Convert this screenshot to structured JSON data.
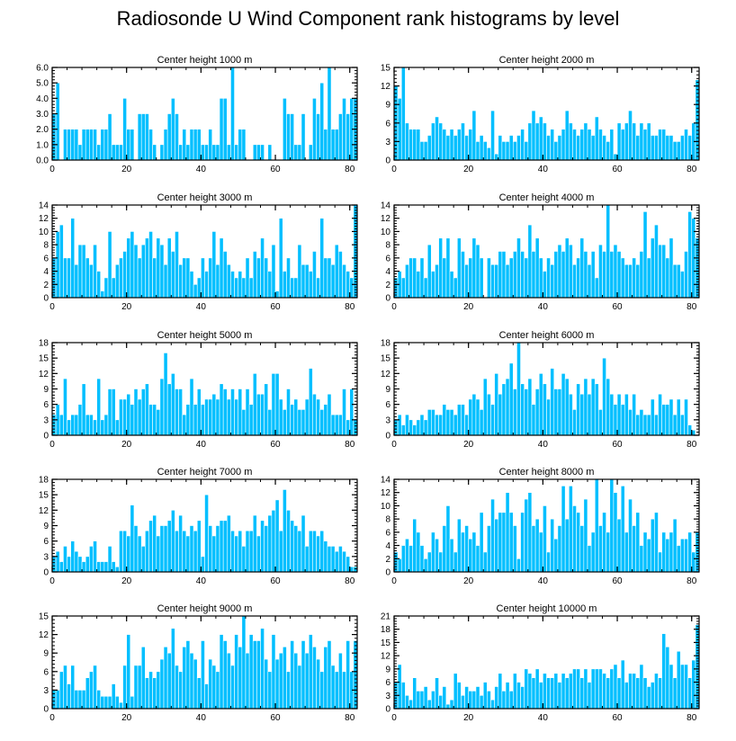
{
  "title": "Radiosonde U Wind Component rank histograms by level",
  "bar_color": "#00bfff",
  "bar_edge_color": "#ffffff",
  "chart_data": [
    {
      "type": "bar",
      "title": "Center height 1000 m",
      "xlim": [
        0,
        82
      ],
      "ylim": [
        0,
        6
      ],
      "xticks": [
        0,
        20,
        40,
        60,
        80
      ],
      "yticks": [
        0,
        1,
        2,
        3,
        4,
        5,
        6
      ],
      "ytick_labels": [
        "0.0",
        "1.0",
        "2.0",
        "3.0",
        "4.0",
        "5.0",
        "6.0"
      ],
      "values": [
        3,
        5,
        0,
        2,
        2,
        2,
        2,
        1,
        2,
        2,
        2,
        2,
        1,
        2,
        2,
        3,
        1,
        1,
        1,
        4,
        2,
        2,
        0,
        3,
        3,
        3,
        2,
        1,
        0,
        1,
        2,
        3,
        4,
        3,
        1,
        2,
        1,
        2,
        2,
        2,
        1,
        1,
        2,
        1,
        1,
        4,
        4,
        1,
        6,
        1,
        2,
        2,
        0,
        0,
        1,
        1,
        1,
        0,
        1,
        0,
        0,
        0,
        4,
        3,
        3,
        1,
        1,
        3,
        0,
        1,
        4,
        3,
        5,
        2,
        6,
        2,
        2,
        3,
        4,
        3,
        4,
        4
      ]
    },
    {
      "type": "bar",
      "title": "Center height 2000 m",
      "xlim": [
        0,
        82
      ],
      "ylim": [
        0,
        15
      ],
      "xticks": [
        0,
        20,
        40,
        60,
        80
      ],
      "yticks": [
        0,
        3,
        6,
        9,
        12,
        15
      ],
      "ytick_labels": [
        "0",
        "3",
        "6",
        "9",
        "12",
        "15"
      ],
      "values": [
        12,
        10,
        15,
        6,
        5,
        5,
        5,
        3,
        3,
        4,
        6,
        7,
        6,
        5,
        4,
        5,
        4,
        5,
        6,
        4,
        5,
        8,
        3,
        4,
        3,
        2,
        8,
        1,
        4,
        3,
        3,
        4,
        3,
        4,
        5,
        3,
        6,
        8,
        6,
        7,
        6,
        4,
        5,
        3,
        4,
        5,
        8,
        6,
        5,
        4,
        5,
        6,
        5,
        4,
        7,
        5,
        4,
        3,
        5,
        1,
        6,
        5,
        6,
        8,
        6,
        4,
        6,
        5,
        6,
        4,
        4,
        5,
        5,
        4,
        4,
        3,
        3,
        4,
        5,
        4,
        6,
        13
      ]
    },
    {
      "type": "bar",
      "title": "Center height 3000 m",
      "xlim": [
        0,
        82
      ],
      "ylim": [
        0,
        14
      ],
      "xticks": [
        0,
        20,
        40,
        60,
        80
      ],
      "yticks": [
        0,
        2,
        4,
        6,
        8,
        10,
        12,
        14
      ],
      "ytick_labels": [
        "0",
        "2",
        "4",
        "6",
        "8",
        "10",
        "12",
        "14"
      ],
      "values": [
        6,
        10,
        11,
        6,
        6,
        12,
        5,
        8,
        8,
        6,
        5,
        8,
        4,
        1,
        3,
        10,
        3,
        5,
        6,
        7,
        9,
        10,
        8,
        6,
        8,
        9,
        10,
        6,
        9,
        8,
        5,
        9,
        7,
        10,
        5,
        6,
        6,
        4,
        2,
        3,
        6,
        4,
        6,
        10,
        5,
        9,
        7,
        5,
        4,
        3,
        4,
        3,
        6,
        3,
        7,
        6,
        9,
        6,
        4,
        8,
        1,
        12,
        4,
        6,
        3,
        3,
        8,
        5,
        5,
        4,
        7,
        3,
        12,
        6,
        6,
        5,
        8,
        7,
        5,
        4,
        3,
        14
      ]
    },
    {
      "type": "bar",
      "title": "Center height 4000 m",
      "xlim": [
        0,
        82
      ],
      "ylim": [
        0,
        14
      ],
      "xticks": [
        0,
        20,
        40,
        60,
        80
      ],
      "yticks": [
        0,
        2,
        4,
        6,
        8,
        10,
        12,
        14
      ],
      "ytick_labels": [
        "0",
        "2",
        "4",
        "6",
        "8",
        "10",
        "12",
        "14"
      ],
      "values": [
        3,
        4,
        3,
        5,
        6,
        6,
        4,
        6,
        3,
        8,
        4,
        5,
        9,
        6,
        9,
        4,
        3,
        9,
        7,
        5,
        6,
        9,
        8,
        6,
        0,
        6,
        5,
        5,
        7,
        7,
        5,
        6,
        7,
        9,
        7,
        6,
        11,
        7,
        9,
        6,
        4,
        6,
        5,
        7,
        8,
        7,
        9,
        8,
        5,
        6,
        9,
        7,
        5,
        7,
        3,
        8,
        7,
        14,
        7,
        8,
        7,
        6,
        5,
        5,
        6,
        5,
        7,
        13,
        6,
        9,
        11,
        8,
        8,
        6,
        9,
        5,
        5,
        4,
        7,
        13,
        12,
        9
      ]
    },
    {
      "type": "bar",
      "title": "Center height 5000 m",
      "xlim": [
        0,
        82
      ],
      "ylim": [
        0,
        18
      ],
      "xticks": [
        0,
        20,
        40,
        60,
        80
      ],
      "yticks": [
        0,
        3,
        6,
        9,
        12,
        15,
        18
      ],
      "ytick_labels": [
        "0",
        "3",
        "6",
        "9",
        "12",
        "15",
        "18"
      ],
      "values": [
        4,
        6,
        4,
        11,
        3,
        4,
        4,
        6,
        10,
        4,
        4,
        3,
        11,
        3,
        4,
        9,
        9,
        3,
        7,
        7,
        8,
        6,
        9,
        7,
        9,
        10,
        6,
        6,
        5,
        11,
        16,
        10,
        12,
        9,
        9,
        4,
        6,
        11,
        6,
        9,
        6,
        7,
        7,
        8,
        7,
        10,
        9,
        7,
        9,
        7,
        9,
        5,
        9,
        6,
        12,
        8,
        8,
        10,
        5,
        12,
        12,
        7,
        5,
        9,
        6,
        7,
        5,
        5,
        7,
        13,
        8,
        7,
        5,
        6,
        8,
        4,
        4,
        4,
        9,
        3,
        9,
        3
      ]
    },
    {
      "type": "bar",
      "title": "Center height 6000 m",
      "xlim": [
        0,
        82
      ],
      "ylim": [
        0,
        18
      ],
      "xticks": [
        0,
        20,
        40,
        60,
        80
      ],
      "yticks": [
        0,
        3,
        6,
        9,
        12,
        15,
        18
      ],
      "ytick_labels": [
        "0",
        "3",
        "6",
        "9",
        "12",
        "15",
        "18"
      ],
      "values": [
        3,
        4,
        2,
        4,
        3,
        2,
        3,
        4,
        3,
        5,
        5,
        4,
        4,
        6,
        5,
        5,
        4,
        6,
        6,
        4,
        7,
        8,
        7,
        5,
        11,
        8,
        6,
        12,
        8,
        10,
        11,
        14,
        9,
        18,
        10,
        9,
        11,
        6,
        9,
        12,
        10,
        7,
        13,
        9,
        9,
        12,
        11,
        8,
        5,
        10,
        8,
        11,
        8,
        11,
        10,
        5,
        15,
        11,
        8,
        6,
        8,
        6,
        8,
        5,
        8,
        4,
        5,
        4,
        4,
        7,
        4,
        8,
        6,
        6,
        7,
        4,
        7,
        4,
        7,
        2,
        1,
        0
      ]
    },
    {
      "type": "bar",
      "title": "Center height 7000 m",
      "xlim": [
        0,
        82
      ],
      "ylim": [
        0,
        18
      ],
      "xticks": [
        0,
        20,
        40,
        60,
        80
      ],
      "yticks": [
        0,
        3,
        6,
        9,
        12,
        15,
        18
      ],
      "ytick_labels": [
        "0",
        "3",
        "6",
        "9",
        "12",
        "15",
        "18"
      ],
      "values": [
        3,
        4,
        2,
        5,
        3,
        6,
        4,
        3,
        2,
        3,
        5,
        6,
        2,
        2,
        2,
        5,
        2,
        1,
        8,
        8,
        7,
        13,
        9,
        7,
        5,
        8,
        10,
        11,
        7,
        9,
        9,
        10,
        12,
        8,
        11,
        8,
        7,
        9,
        8,
        10,
        3,
        15,
        9,
        7,
        9,
        10,
        10,
        11,
        8,
        7,
        8,
        5,
        8,
        8,
        11,
        7,
        10,
        9,
        11,
        12,
        14,
        8,
        16,
        12,
        10,
        9,
        8,
        11,
        5,
        8,
        8,
        7,
        8,
        6,
        5,
        5,
        4,
        5,
        4,
        3,
        1,
        1
      ]
    },
    {
      "type": "bar",
      "title": "Center height 8000 m",
      "xlim": [
        0,
        82
      ],
      "ylim": [
        0,
        14
      ],
      "xticks": [
        0,
        20,
        40,
        60,
        80
      ],
      "yticks": [
        0,
        2,
        4,
        6,
        8,
        10,
        12,
        14
      ],
      "ytick_labels": [
        "0",
        "2",
        "4",
        "6",
        "8",
        "10",
        "12",
        "14"
      ],
      "values": [
        3,
        2,
        4,
        5,
        4,
        8,
        6,
        4,
        2,
        3,
        6,
        5,
        3,
        7,
        10,
        5,
        3,
        8,
        6,
        7,
        5,
        6,
        4,
        9,
        3,
        7,
        11,
        8,
        9,
        9,
        12,
        9,
        7,
        2,
        9,
        11,
        12,
        7,
        8,
        6,
        10,
        3,
        8,
        5,
        7,
        13,
        8,
        13,
        10,
        9,
        7,
        11,
        4,
        6,
        14,
        7,
        9,
        6,
        14,
        12,
        8,
        13,
        6,
        11,
        7,
        9,
        4,
        6,
        5,
        8,
        9,
        3,
        6,
        5,
        6,
        8,
        4,
        5,
        5,
        6,
        3,
        6
      ]
    },
    {
      "type": "bar",
      "title": "Center height 9000 m",
      "xlim": [
        0,
        82
      ],
      "ylim": [
        0,
        15
      ],
      "xticks": [
        0,
        20,
        40,
        60,
        80
      ],
      "yticks": [
        0,
        3,
        6,
        9,
        12,
        15
      ],
      "ytick_labels": [
        "0",
        "3",
        "6",
        "9",
        "12",
        "15"
      ],
      "values": [
        3,
        3,
        6,
        7,
        4,
        7,
        3,
        3,
        3,
        5,
        6,
        7,
        3,
        2,
        2,
        2,
        4,
        2,
        1,
        7,
        12,
        2,
        7,
        7,
        10,
        5,
        6,
        5,
        6,
        8,
        10,
        9,
        13,
        7,
        6,
        10,
        11,
        9,
        8,
        5,
        11,
        4,
        8,
        7,
        6,
        12,
        11,
        9,
        7,
        12,
        10,
        15,
        9,
        12,
        11,
        11,
        13,
        8,
        6,
        12,
        8,
        9,
        10,
        6,
        11,
        9,
        7,
        11,
        9,
        12,
        10,
        8,
        6,
        10,
        11,
        7,
        6,
        9,
        6,
        11,
        6,
        11
      ]
    },
    {
      "type": "bar",
      "title": "Center height 10000 m",
      "xlim": [
        0,
        82
      ],
      "ylim": [
        0,
        21
      ],
      "xticks": [
        0,
        20,
        40,
        60,
        80
      ],
      "yticks": [
        0,
        3,
        6,
        9,
        12,
        15,
        18,
        21
      ],
      "ytick_labels": [
        "0",
        "3",
        "6",
        "9",
        "12",
        "15",
        "18",
        "21"
      ],
      "values": [
        6,
        10,
        6,
        3,
        2,
        7,
        4,
        4,
        5,
        2,
        4,
        7,
        3,
        5,
        1,
        2,
        8,
        6,
        3,
        5,
        4,
        4,
        5,
        3,
        6,
        4,
        2,
        5,
        8,
        4,
        6,
        4,
        8,
        6,
        5,
        9,
        8,
        7,
        9,
        6,
        8,
        7,
        7,
        8,
        6,
        8,
        7,
        8,
        9,
        9,
        7,
        9,
        6,
        9,
        9,
        9,
        8,
        7,
        9,
        10,
        7,
        11,
        6,
        8,
        8,
        7,
        10,
        7,
        5,
        6,
        8,
        7,
        17,
        14,
        10,
        7,
        13,
        10,
        10,
        7,
        11,
        19
      ]
    }
  ]
}
